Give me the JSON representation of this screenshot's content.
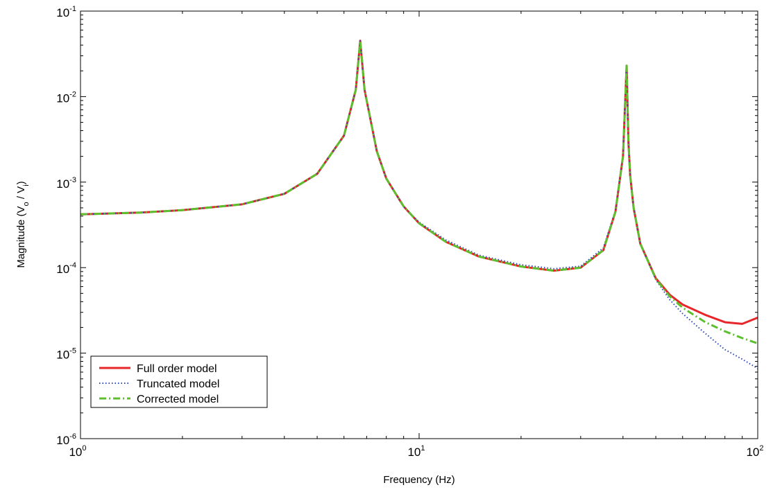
{
  "chart_data": {
    "type": "line",
    "title": "",
    "xlabel": "Frequency (Hz)",
    "ylabel": {
      "prefix": "Magnitude (V",
      "sub1": "o",
      "mid": " / V",
      "sub2": "i",
      "suffix": ")"
    },
    "x_scale": "log",
    "y_scale": "log",
    "xlim": [
      1,
      100
    ],
    "ylim": [
      1e-06,
      0.1
    ],
    "x_ticks": [
      {
        "base": "10",
        "exp": "0"
      },
      {
        "base": "10",
        "exp": "1"
      },
      {
        "base": "10",
        "exp": "2"
      }
    ],
    "y_ticks": [
      {
        "base": "10",
        "exp": "-6"
      },
      {
        "base": "10",
        "exp": "-5"
      },
      {
        "base": "10",
        "exp": "-4"
      },
      {
        "base": "10",
        "exp": "-3"
      },
      {
        "base": "10",
        "exp": "-2"
      },
      {
        "base": "10",
        "exp": "-1"
      }
    ],
    "grid": false,
    "legend_position": "bottom-left",
    "x": [
      1,
      1.5,
      2,
      3,
      4,
      5,
      6,
      6.5,
      6.7,
      6.9,
      7.5,
      8,
      9,
      10,
      12,
      15,
      20,
      25,
      30,
      35,
      38,
      40,
      41,
      41.5,
      42,
      43,
      45,
      50,
      55,
      60,
      70,
      80,
      90,
      100
    ],
    "series": [
      {
        "name": "Full order model",
        "color": "#e8262a",
        "dash": "solid",
        "values": [
          0.00042,
          0.00044,
          0.00047,
          0.00055,
          0.00073,
          0.00125,
          0.0035,
          0.012,
          0.045,
          0.012,
          0.0023,
          0.0011,
          0.00052,
          0.00033,
          0.0002,
          0.000135,
          0.000103,
          9.2e-05,
          0.0001,
          0.00016,
          0.00045,
          0.002,
          0.023,
          0.003,
          0.0012,
          0.0005,
          0.00019,
          7.5e-05,
          4.8e-05,
          3.7e-05,
          2.8e-05,
          2.3e-05,
          2.2e-05,
          2.6e-05
        ]
      },
      {
        "name": "Truncated model",
        "color": "#2a46b8",
        "dash": "dotted",
        "values": [
          0.00042,
          0.00044,
          0.00047,
          0.00055,
          0.00073,
          0.00125,
          0.0035,
          0.012,
          0.045,
          0.012,
          0.0023,
          0.0011,
          0.00052,
          0.00034,
          0.00021,
          0.00014,
          0.000108,
          9.7e-05,
          0.000104,
          0.00017,
          0.00047,
          0.002,
          0.023,
          0.003,
          0.0012,
          0.0005,
          0.00019,
          7.2e-05,
          4.2e-05,
          2.9e-05,
          1.7e-05,
          1.1e-05,
          8.5e-06,
          6.6e-06
        ]
      },
      {
        "name": "Corrected model",
        "color": "#5cbf2e",
        "dash": "dash-dot",
        "values": [
          0.00042,
          0.00044,
          0.00047,
          0.00055,
          0.00073,
          0.00125,
          0.0035,
          0.012,
          0.045,
          0.012,
          0.0023,
          0.0011,
          0.00052,
          0.00033,
          0.0002,
          0.000135,
          0.000103,
          9.2e-05,
          0.0001,
          0.00016,
          0.00045,
          0.002,
          0.023,
          0.003,
          0.0012,
          0.0005,
          0.00019,
          7.4e-05,
          4.6e-05,
          3.4e-05,
          2.3e-05,
          1.8e-05,
          1.5e-05,
          1.3e-05
        ]
      }
    ]
  }
}
